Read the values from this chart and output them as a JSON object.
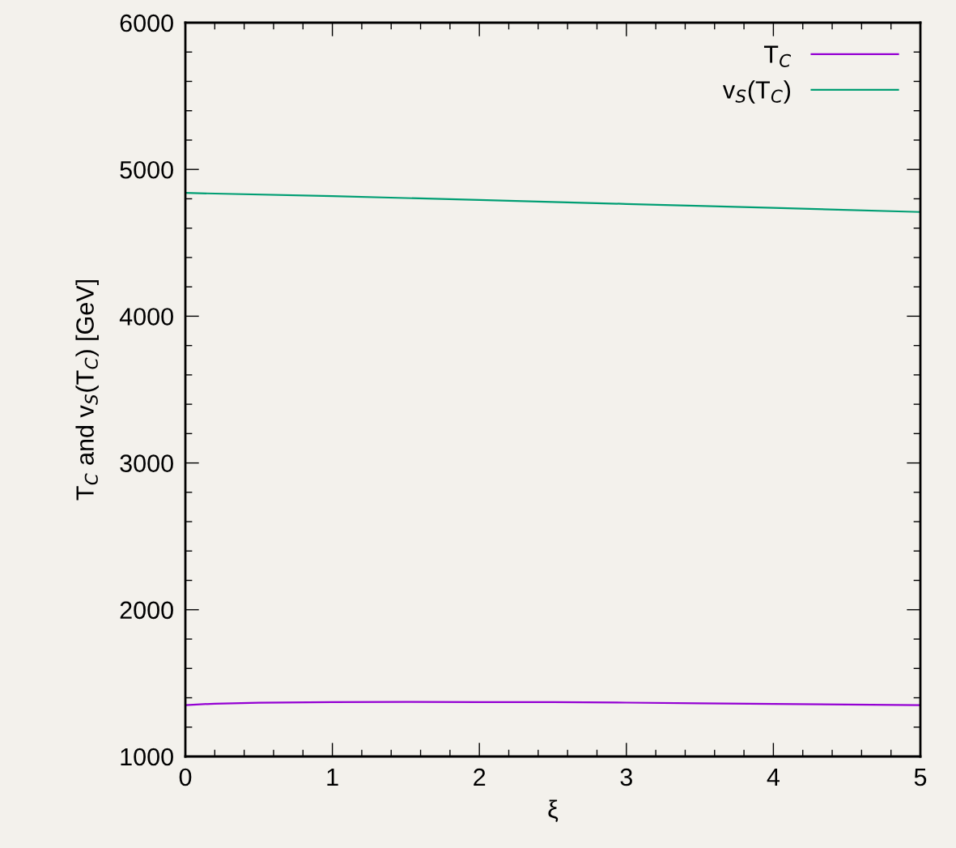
{
  "chart_data": {
    "type": "line",
    "xlabel": "ξ",
    "ylabel": "T$_{C}$ and v$_{S}$(T$_{C}$) [GeV]",
    "xlim": [
      0,
      5
    ],
    "ylim": [
      1000,
      6000
    ],
    "xticks": [
      0,
      1,
      2,
      3,
      4,
      5
    ],
    "yticks": [
      1000,
      2000,
      3000,
      4000,
      5000,
      6000
    ],
    "legend": "top right",
    "grid": false,
    "marker": "none",
    "line_style": "solid",
    "series": [
      {
        "name": "T$_{C}$",
        "color": "#9400d3",
        "x": [
          0,
          0.2,
          0.5,
          1,
          1.5,
          2,
          2.5,
          3,
          3.5,
          4,
          4.5,
          5
        ],
        "values": [
          1350,
          1360,
          1366,
          1370,
          1372,
          1371,
          1370,
          1367,
          1362,
          1358,
          1354,
          1350
        ]
      },
      {
        "name": "v$_{S}$(T$_{C}$)",
        "color": "#009e73",
        "x": [
          0,
          1,
          2,
          3,
          4,
          5
        ],
        "values": [
          4840,
          4818,
          4792,
          4765,
          4738,
          4710
        ]
      }
    ]
  }
}
